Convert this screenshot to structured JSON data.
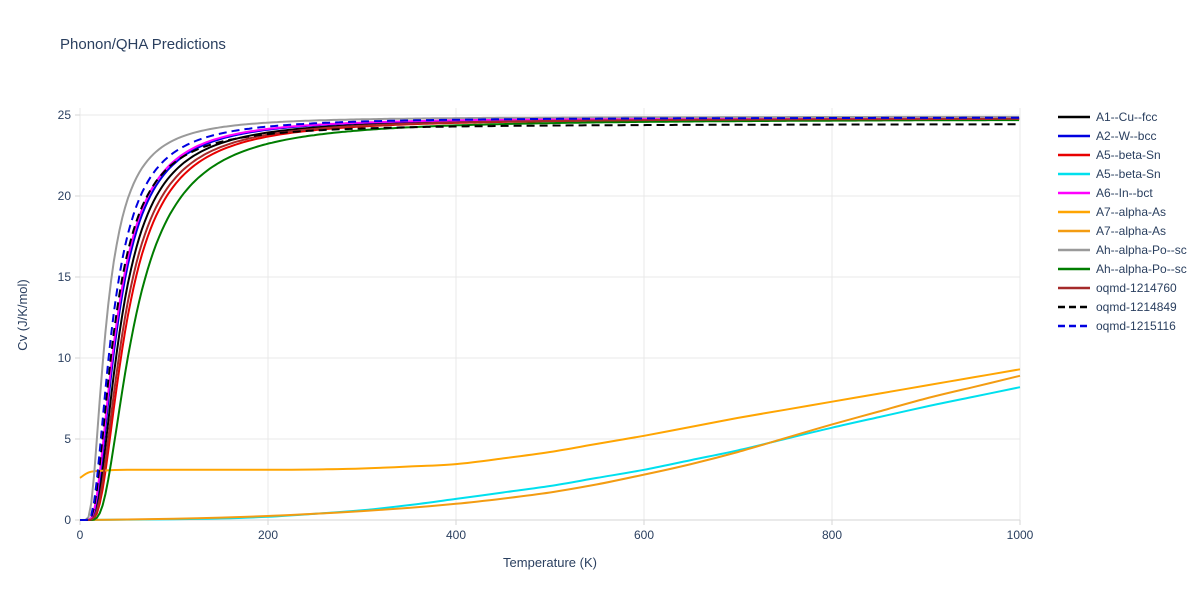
{
  "chart_data": {
    "type": "line",
    "title": "Phonon/QHA Predictions",
    "xlabel": "Temperature (K)",
    "ylabel": "Cv (J/K/mol)",
    "xlim": [
      0,
      1000
    ],
    "ylim": [
      0,
      25
    ],
    "xticks": [
      0,
      200,
      400,
      600,
      800,
      1000
    ],
    "yticks": [
      0,
      5,
      10,
      15,
      20,
      25
    ],
    "grid": true,
    "legend_position": "right",
    "series": [
      {
        "name": "A1--Cu--fcc",
        "color": "#000000",
        "dash": "solid",
        "model": "einstein",
        "theta": 132,
        "saturation": 24.8
      },
      {
        "name": "A2--W--bcc",
        "color": "#0000e0",
        "dash": "solid",
        "model": "einstein",
        "theta": 122,
        "saturation": 24.85
      },
      {
        "name": "A5--beta-Sn",
        "color": "#e80000",
        "dash": "solid",
        "model": "einstein",
        "theta": 150,
        "saturation": 24.8
      },
      {
        "name": "A5--beta-Sn",
        "color": "#00e0ee",
        "dash": "solid",
        "model": "points",
        "points": [
          [
            0,
            0
          ],
          [
            100,
            0.05
          ],
          [
            150,
            0.1
          ],
          [
            200,
            0.2
          ],
          [
            250,
            0.38
          ],
          [
            300,
            0.6
          ],
          [
            350,
            0.92
          ],
          [
            400,
            1.3
          ],
          [
            450,
            1.7
          ],
          [
            500,
            2.1
          ],
          [
            550,
            2.6
          ],
          [
            600,
            3.1
          ],
          [
            650,
            3.7
          ],
          [
            700,
            4.3
          ],
          [
            750,
            5.0
          ],
          [
            800,
            5.7
          ],
          [
            850,
            6.35
          ],
          [
            900,
            7.0
          ],
          [
            950,
            7.6
          ],
          [
            1000,
            8.2
          ]
        ]
      },
      {
        "name": "A6--In--bct",
        "color": "#ff00ff",
        "dash": "solid",
        "model": "einstein",
        "theta": 118,
        "saturation": 24.85
      },
      {
        "name": "A7--alpha-As",
        "color": "#ffa502",
        "dash": "solid",
        "model": "points",
        "points": [
          [
            0,
            2.6
          ],
          [
            10,
            2.95
          ],
          [
            25,
            3.05
          ],
          [
            50,
            3.1
          ],
          [
            100,
            3.1
          ],
          [
            150,
            3.1
          ],
          [
            200,
            3.1
          ],
          [
            250,
            3.12
          ],
          [
            300,
            3.18
          ],
          [
            350,
            3.3
          ],
          [
            400,
            3.45
          ],
          [
            450,
            3.8
          ],
          [
            500,
            4.2
          ],
          [
            550,
            4.7
          ],
          [
            600,
            5.2
          ],
          [
            650,
            5.75
          ],
          [
            700,
            6.3
          ],
          [
            750,
            6.8
          ],
          [
            800,
            7.3
          ],
          [
            850,
            7.8
          ],
          [
            900,
            8.3
          ],
          [
            950,
            8.8
          ],
          [
            1000,
            9.3
          ]
        ]
      },
      {
        "name": "A7--alpha-As",
        "color": "#f39c12",
        "dash": "solid",
        "model": "points",
        "points": [
          [
            0,
            0
          ],
          [
            50,
            0.03
          ],
          [
            100,
            0.08
          ],
          [
            150,
            0.15
          ],
          [
            200,
            0.25
          ],
          [
            250,
            0.38
          ],
          [
            300,
            0.55
          ],
          [
            350,
            0.75
          ],
          [
            400,
            1.0
          ],
          [
            450,
            1.32
          ],
          [
            500,
            1.7
          ],
          [
            550,
            2.2
          ],
          [
            600,
            2.8
          ],
          [
            650,
            3.45
          ],
          [
            700,
            4.2
          ],
          [
            750,
            5.05
          ],
          [
            800,
            5.9
          ],
          [
            850,
            6.7
          ],
          [
            900,
            7.5
          ],
          [
            950,
            8.2
          ],
          [
            1000,
            8.9
          ]
        ]
      },
      {
        "name": "Ah--alpha-Po--sc",
        "color": "#9a9a9a",
        "dash": "solid",
        "model": "einstein",
        "theta": 85,
        "saturation": 24.9
      },
      {
        "name": "Ah--alpha-Po--sc",
        "color": "#007d00",
        "dash": "solid",
        "model": "einstein",
        "theta": 175,
        "saturation": 24.75
      },
      {
        "name": "oqmd-1214760",
        "color": "#a52a2a",
        "dash": "solid",
        "model": "einstein",
        "theta": 142,
        "saturation": 24.8
      },
      {
        "name": "oqmd-1214849",
        "color": "#000000",
        "dash": "dash",
        "model": "einstein",
        "theta": 112,
        "saturation": 24.45
      },
      {
        "name": "oqmd-1215116",
        "color": "#0000e0",
        "dash": "dash",
        "model": "einstein",
        "theta": 105,
        "saturation": 24.85
      }
    ],
    "colors": {
      "text": "#2a3f5f",
      "grid": "#e9e9e9",
      "axis_line": "#d6d6d6",
      "background": "#ffffff"
    }
  }
}
